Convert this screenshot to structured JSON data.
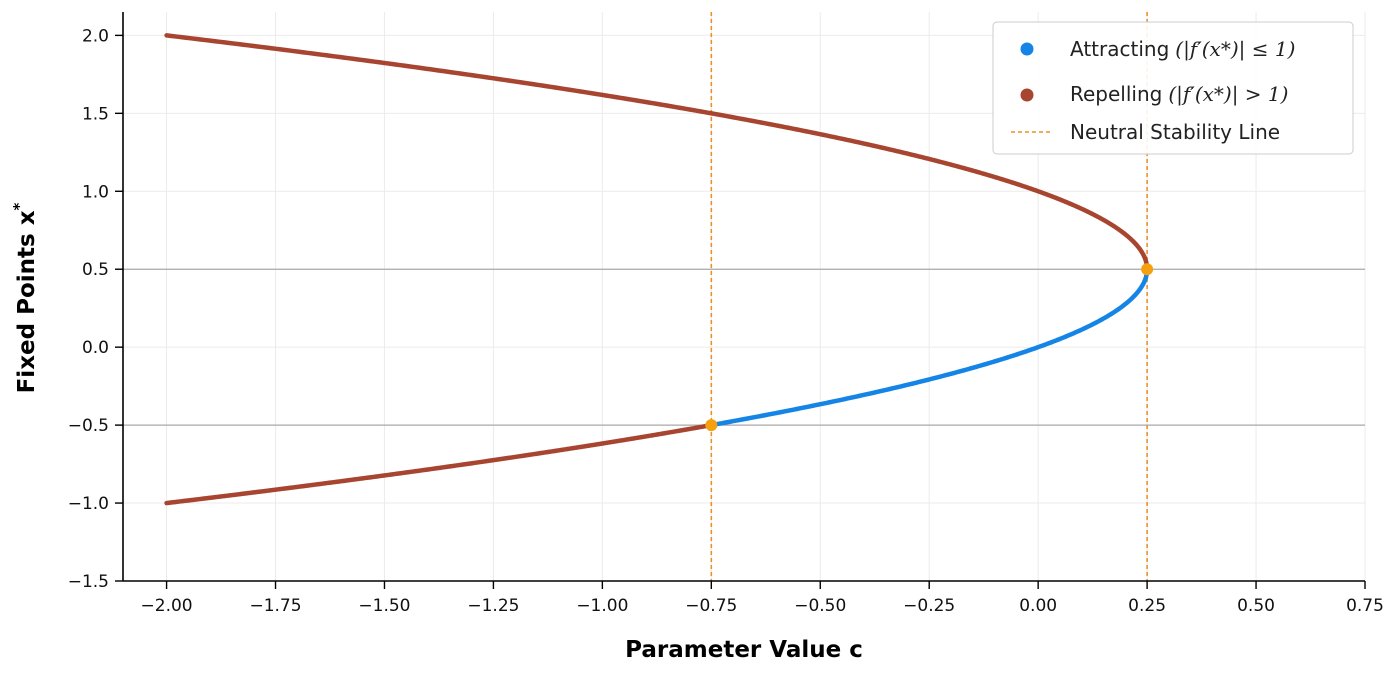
{
  "chart_data": {
    "type": "line",
    "xlabel": "Parameter Value  c",
    "ylabel": "Fixed Points x",
    "ylabel_superscript": "*",
    "xlim": [
      -2.1,
      0.75
    ],
    "ylim": [
      -1.5,
      2.15
    ],
    "xticks": [
      -2.0,
      -1.75,
      -1.5,
      -1.25,
      -1.0,
      -0.75,
      -0.5,
      -0.25,
      0.0,
      0.25,
      0.5,
      0.75
    ],
    "xtick_labels": [
      "−2.00",
      "−1.75",
      "−1.50",
      "−1.25",
      "−1.00",
      "−0.75",
      "−0.50",
      "−0.25",
      "0.00",
      "0.25",
      "0.50",
      "0.75"
    ],
    "yticks": [
      -1.5,
      -1.0,
      -0.5,
      0.0,
      0.5,
      1.0,
      1.5,
      2.0
    ],
    "ytick_labels": [
      "−1.5",
      "−1.0",
      "−0.5",
      "0.0",
      "0.5",
      "1.0",
      "1.5",
      "2.0"
    ],
    "grid": true,
    "legend_position": "top-right",
    "series": [
      {
        "name": "Attracting",
        "legend_math": "(|f′(x*)| ≤ 1)",
        "color": "#1485e6",
        "c_range": [
          -0.75,
          0.25
        ],
        "branch": "lower"
      },
      {
        "name": "Repelling",
        "legend_math": "(|f′(x*)| > 1)",
        "color": "#a84530",
        "c_range": [
          -2.0,
          0.25
        ],
        "branch": "upper"
      },
      {
        "name": "Repelling",
        "color": "#a84530",
        "c_range": [
          -2.0,
          -0.75
        ],
        "branch": "lower"
      }
    ],
    "neutral_lines": {
      "name": "Neutral Stability Line",
      "color": "#e8922a",
      "x": [
        -0.75,
        0.25
      ]
    },
    "reference_lines_y": [
      0.5,
      -0.5
    ],
    "reference_line_color": "#a9a9a9",
    "bifurcation_points": [
      {
        "x": 0.25,
        "y": 0.5
      },
      {
        "x": -0.75,
        "y": -0.5
      }
    ],
    "bifurcation_point_color": "#f5a10f"
  }
}
